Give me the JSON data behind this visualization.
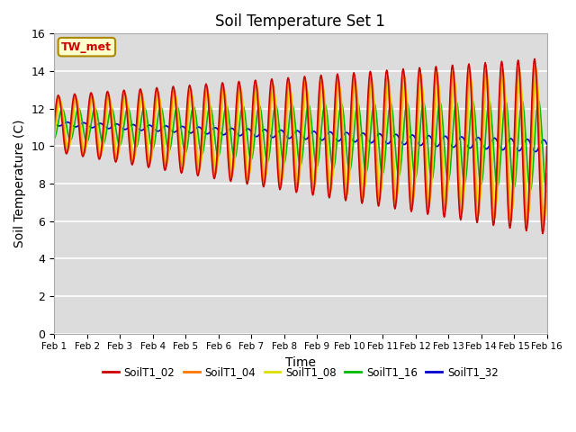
{
  "title": "Soil Temperature Set 1",
  "xlabel": "Time",
  "ylabel": "Soil Temperature (C)",
  "ylim": [
    0,
    16
  ],
  "yticks": [
    0,
    2,
    4,
    6,
    8,
    10,
    12,
    14,
    16
  ],
  "xtick_labels": [
    "Feb 1",
    "Feb 2",
    "Feb 3",
    "Feb 4",
    "Feb 5",
    "Feb 6",
    "Feb 7",
    "Feb 8",
    "Feb 9",
    "Feb 10",
    "Feb 11",
    "Feb 12",
    "Feb 13",
    "Feb 14",
    "Feb 15",
    "Feb 16"
  ],
  "series_names": [
    "SoilT1_02",
    "SoilT1_04",
    "SoilT1_08",
    "SoilT1_16",
    "SoilT1_32"
  ],
  "series_colors": [
    "#cc0000",
    "#ff7700",
    "#dddd00",
    "#00bb00",
    "#0000cc"
  ],
  "annotation_text": "TW_met",
  "annotation_bg": "#ffffcc",
  "annotation_border": "#aa8800",
  "annotation_text_color": "#cc0000",
  "plot_bg_color": "#dcdcdc",
  "fig_bg_color": "#ffffff",
  "linewidth": 1.2,
  "n_points": 721,
  "days": 15
}
